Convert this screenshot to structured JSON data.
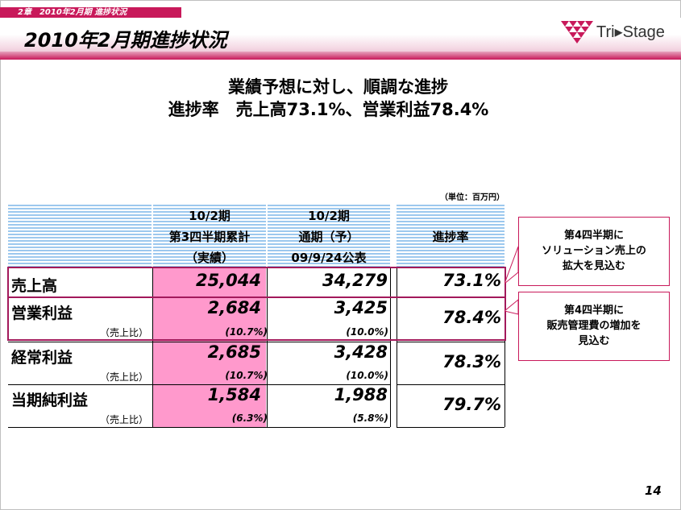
{
  "header": {
    "breadcrumb": "2章　2010年2月期 進捗状況",
    "title": "2010年2月期進捗状況",
    "logo_text": "Tri▸Stage"
  },
  "headline": {
    "line1": "業績予想に対し、順調な進捗",
    "line2": "進捗率　売上高73.1%、営業利益78.4%"
  },
  "unit_note": "（単位：百万円）",
  "table": {
    "columns": [
      {
        "lines": [
          "10/2期",
          "第3四半期累計",
          "（実績）"
        ]
      },
      {
        "lines": [
          "10/2期",
          "通期（予）",
          "09/9/24公表"
        ]
      },
      {
        "lines": [
          "進捗率"
        ]
      }
    ],
    "rows": [
      {
        "label": "売上高",
        "sub": "",
        "actual": "25,044",
        "forecast": "34,279",
        "actual_ratio": "",
        "forecast_ratio": "",
        "rate": "73.1%"
      },
      {
        "label": "営業利益",
        "sub": "（売上比）",
        "actual": "2,684",
        "forecast": "3,425",
        "actual_ratio": "(10.7%)",
        "forecast_ratio": "(10.0%)",
        "rate": "78.4%"
      },
      {
        "label": "経常利益",
        "sub": "（売上比）",
        "actual": "2,685",
        "forecast": "3,428",
        "actual_ratio": "(10.7%)",
        "forecast_ratio": "(10.0%)",
        "rate": "78.3%"
      },
      {
        "label": "当期純利益",
        "sub": "（売上比）",
        "actual": "1,584",
        "forecast": "1,988",
        "actual_ratio": "(6.3%)",
        "forecast_ratio": "(5.8%)",
        "rate": "79.7%"
      }
    ]
  },
  "callouts": [
    {
      "lines": [
        "第4四半期に",
        "ソリューション売上の",
        "拡大を見込む"
      ]
    },
    {
      "lines": [
        "第4四半期に",
        "販売管理費の増加を",
        "見込む"
      ]
    }
  ],
  "page_number": "14",
  "colors": {
    "accent": "#c8195a",
    "highlight_pink": "#ff99cc",
    "header_stripe": "#9cc8ee"
  }
}
